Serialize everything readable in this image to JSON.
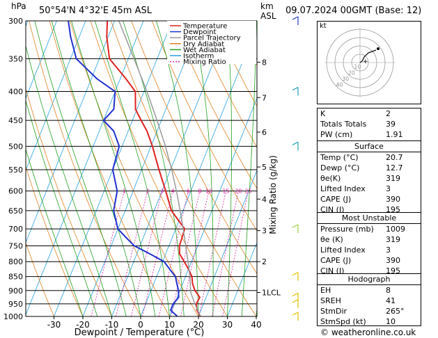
{
  "header": {
    "location": "50°54'N  4°32'E  45m  ASL",
    "datetime": "09.07.2024  00GMT  (Base: 12)",
    "hpa_unit": "hPa",
    "km_unit": "km",
    "asl_unit": "ASL",
    "credit": "© weatheronline.co.uk"
  },
  "chart_data": {
    "type": "line",
    "subtype": "skew-t log-p",
    "xlabel": "Dewpoint / Temperature (°C)",
    "ylabel_right": "Mixing Ratio (g/kg)",
    "x_ticks": [
      -30,
      -20,
      -10,
      0,
      10,
      20,
      30,
      40
    ],
    "xlim": [
      -35,
      40
    ],
    "pressure_levels": [
      300,
      350,
      400,
      450,
      500,
      550,
      600,
      650,
      700,
      750,
      800,
      850,
      900,
      950,
      1000
    ],
    "ylim": [
      1000,
      300
    ],
    "y_scale": "log",
    "km_ticks": [
      {
        "label": "8",
        "p": 355
      },
      {
        "label": "7",
        "p": 410
      },
      {
        "label": "6",
        "p": 472
      },
      {
        "label": "5",
        "p": 544
      },
      {
        "label": "4",
        "p": 620
      },
      {
        "label": "3",
        "p": 705
      },
      {
        "label": "2",
        "p": 800
      },
      {
        "label": "1LCL",
        "p": 907
      }
    ],
    "mixing_ratio_labels": [
      "1",
      "2",
      "3",
      "4",
      "6",
      "8",
      "10",
      "15",
      "20",
      "25"
    ],
    "legend": [
      "Temperature",
      "Dewpoint",
      "Parcel Trajectory",
      "Dry Adiabat",
      "Wet Adiabat",
      "Isotherm",
      "Mixing Ratio"
    ],
    "legend_position": "top-right",
    "series": [
      {
        "name": "Temperature",
        "color": "#e02020",
        "p": [
          1000,
          975,
          950,
          925,
          900,
          875,
          850,
          825,
          800,
          775,
          750,
          725,
          700,
          650,
          600,
          550,
          500,
          470,
          450,
          430,
          400,
          380,
          350,
          320,
          300
        ],
        "t": [
          20.7,
          18.6,
          17.5,
          17.8,
          15.2,
          13.4,
          12.2,
          10.0,
          7.5,
          4.8,
          3.6,
          3.4,
          3.1,
          -4.0,
          -8.7,
          -14.0,
          -19.5,
          -23.5,
          -27.0,
          -30.5,
          -33.0,
          -38.0,
          -46.5,
          -50.5,
          -52.5
        ]
      },
      {
        "name": "Dewpoint",
        "color": "#2030d0",
        "p": [
          1000,
          975,
          950,
          925,
          900,
          875,
          850,
          825,
          800,
          775,
          750,
          725,
          700,
          650,
          600,
          550,
          500,
          470,
          450,
          430,
          400,
          380,
          350,
          320,
          300
        ],
        "t": [
          12.7,
          9.5,
          9.5,
          10.5,
          9.5,
          8.0,
          6.5,
          3.5,
          0.5,
          -5.5,
          -12.0,
          -16.0,
          -20.0,
          -24.0,
          -25.5,
          -30.0,
          -31.0,
          -35.0,
          -40.0,
          -38.0,
          -40.0,
          -48.0,
          -58.0,
          -63.0,
          -66.0
        ]
      },
      {
        "name": "Parcel Trajectory",
        "color": "#999999",
        "p": [
          1000,
          950,
          907,
          850,
          800,
          750,
          700,
          650,
          600,
          550,
          500,
          450,
          400,
          350,
          300
        ],
        "t": [
          20.7,
          17.0,
          14.0,
          11.5,
          8.8,
          5.8,
          2.6,
          -1.0,
          -5.0,
          -9.6,
          -15.0,
          -21.5,
          -29.0,
          -38.0,
          -48.5
        ]
      }
    ]
  },
  "hodograph": {
    "label": "kt",
    "rings": [
      "10",
      "20",
      "30",
      "40"
    ]
  },
  "indices": [
    {
      "label": "K",
      "value": "2"
    },
    {
      "label": "Totals Totals",
      "value": "39"
    },
    {
      "label": "PW (cm)",
      "value": "1.91"
    }
  ],
  "surface": {
    "title": "Surface",
    "rows": [
      {
        "label": "Temp (°C)",
        "value": "20.7"
      },
      {
        "label": "Dewp (°C)",
        "value": "12.7"
      },
      {
        "label": "θe(K)",
        "value": "319"
      },
      {
        "label": "Lifted Index",
        "value": "3"
      },
      {
        "label": "CAPE (J)",
        "value": "390"
      },
      {
        "label": "CIN (J)",
        "value": "195"
      }
    ]
  },
  "most_unstable": {
    "title": "Most Unstable",
    "rows": [
      {
        "label": "Pressure (mb)",
        "value": "1009"
      },
      {
        "label": "θe (K)",
        "value": "319"
      },
      {
        "label": "Lifted Index",
        "value": "3"
      },
      {
        "label": "CAPE (J)",
        "value": "390"
      },
      {
        "label": "CIN (J)",
        "value": "195"
      }
    ]
  },
  "hodo_table": {
    "title": "Hodograph",
    "rows": [
      {
        "label": "EH",
        "value": "8"
      },
      {
        "label": "SREH",
        "value": "41"
      },
      {
        "label": "StmDir",
        "value": "265°"
      },
      {
        "label": "StmSpd (kt)",
        "value": "10"
      }
    ]
  },
  "colors": {
    "temperature": "#e02020",
    "dewpoint": "#2030d0",
    "parcel": "#999999",
    "dry_adiabat": "#e08020",
    "wet_adiabat": "#20a020",
    "isotherm": "#20a0e0",
    "mixing_ratio": "#e020a0"
  }
}
